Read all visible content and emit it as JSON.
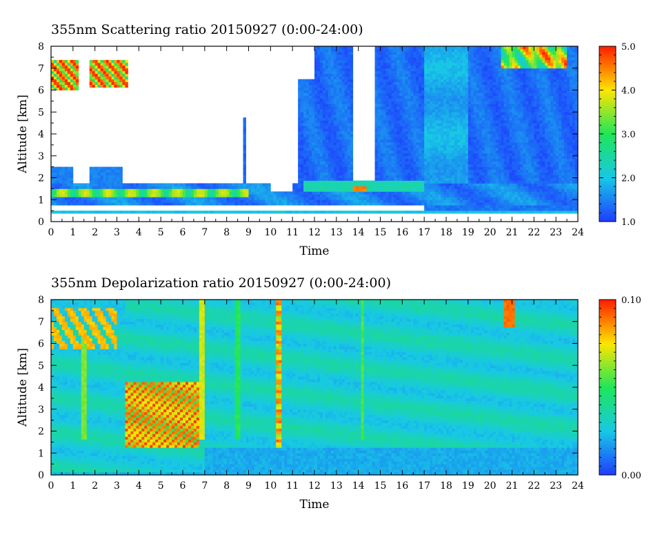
{
  "chart_data": [
    {
      "type": "heatmap",
      "title": "355nm Scattering ratio  20150927 (0:00-24:00)",
      "xlabel": "Time",
      "ylabel": "Altitude [km]",
      "xlim": [
        0,
        24
      ],
      "ylim": [
        0,
        8
      ],
      "x_ticks": [
        "0",
        "1",
        "2",
        "3",
        "4",
        "5",
        "6",
        "7",
        "8",
        "9",
        "10",
        "11",
        "12",
        "13",
        "14",
        "15",
        "16",
        "17",
        "18",
        "19",
        "20",
        "21",
        "22",
        "23",
        "24"
      ],
      "y_ticks": [
        "0",
        "1",
        "2",
        "3",
        "4",
        "5",
        "6",
        "7",
        "8"
      ],
      "colorbar": {
        "range": [
          1.0,
          5.0
        ],
        "tick_labels": [
          "1.0",
          "2.0",
          "3.0",
          "4.0",
          "5.0"
        ],
        "tick_values": [
          1.0,
          2.0,
          3.0,
          4.0,
          5.0
        ],
        "colors": [
          "#1e3cff",
          "#18c8e6",
          "#1ee65a",
          "#ffe600",
          "#ff1e00"
        ]
      },
      "features": [
        {
          "feature": "boundary-layer",
          "x_range": [
            0,
            24
          ],
          "altitude": [
            0.7,
            1.8
          ],
          "value": 1.6
        },
        {
          "feature": "surface-layer",
          "x_range": [
            0,
            24
          ],
          "altitude": [
            0.35,
            0.45
          ],
          "value": 2.0
        },
        {
          "feature": "aerosol-layer",
          "x_range": [
            11.5,
            17
          ],
          "altitude": [
            1.4,
            1.9
          ],
          "value": 2.5
        },
        {
          "feature": "cloud",
          "x_range": [
            13.8,
            14.4
          ],
          "altitude": [
            1.4,
            1.6
          ],
          "value": 4.5
        },
        {
          "feature": "cloud",
          "x_range": [
            20.5,
            23.5
          ],
          "altitude": [
            7.0,
            8.0
          ],
          "value": 5.0
        },
        {
          "feature": "cloud",
          "x_range": [
            0,
            3.5
          ],
          "altitude": [
            5.8,
            7.6
          ],
          "value": 4.0
        },
        {
          "feature": "high-aerosol",
          "x_range": [
            11.3,
            24
          ],
          "altitude": [
            1.8,
            8.0
          ],
          "value": 1.4
        }
      ]
    },
    {
      "type": "heatmap",
      "title": "355nm Depolarization ratio  20150927 (0:00-24:00)",
      "xlabel": "Time",
      "ylabel": "Altitude [km]",
      "xlim": [
        0,
        24
      ],
      "ylim": [
        0,
        8
      ],
      "x_ticks": [
        "0",
        "1",
        "2",
        "3",
        "4",
        "5",
        "6",
        "7",
        "8",
        "9",
        "10",
        "11",
        "12",
        "13",
        "14",
        "15",
        "16",
        "17",
        "18",
        "19",
        "20",
        "21",
        "22",
        "23",
        "24"
      ],
      "y_ticks": [
        "0",
        "1",
        "2",
        "3",
        "4",
        "5",
        "6",
        "7",
        "8"
      ],
      "colorbar": {
        "range": [
          0.0,
          0.1
        ],
        "tick_labels": [
          "0.00",
          "0.10"
        ],
        "tick_values": [
          0.0,
          0.1
        ],
        "colors": [
          "#1e3cff",
          "#18c8e6",
          "#1ee65a",
          "#ffe600",
          "#ff1e00"
        ]
      },
      "features": [
        {
          "feature": "background",
          "x_range": [
            0,
            24
          ],
          "altitude": [
            0,
            8
          ],
          "value": 0.03
        },
        {
          "feature": "dust-layer",
          "x_range": [
            3.4,
            6.8
          ],
          "altitude": [
            1.2,
            4.2
          ],
          "value": 0.08
        },
        {
          "feature": "streak",
          "x_range": [
            10.3,
            10.5
          ],
          "altitude": [
            1.2,
            8.0
          ],
          "value": 0.07
        },
        {
          "feature": "streak",
          "x_range": [
            14.1,
            14.3
          ],
          "altitude": [
            1.6,
            8.0
          ],
          "value": 0.06
        },
        {
          "feature": "cloud",
          "x_range": [
            20.6,
            21.1
          ],
          "altitude": [
            6.8,
            8.0
          ],
          "value": 0.09
        },
        {
          "feature": "cloud",
          "x_range": [
            0,
            3.0
          ],
          "altitude": [
            5.8,
            7.6
          ],
          "value": 0.08
        }
      ]
    }
  ]
}
